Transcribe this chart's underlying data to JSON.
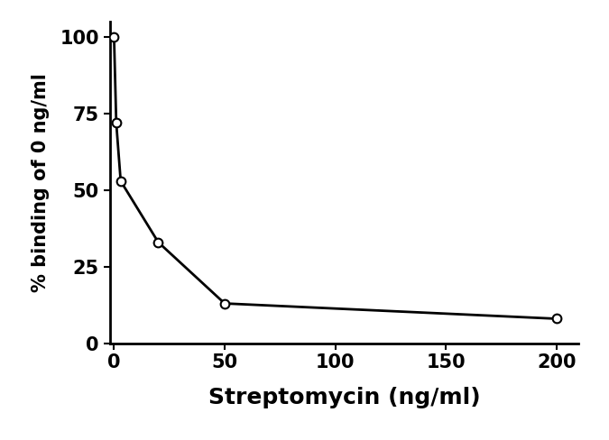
{
  "x": [
    0,
    1,
    3,
    20,
    50,
    200
  ],
  "y": [
    100,
    72,
    53,
    33,
    13,
    8
  ],
  "xlabel": "Streptomycin (ng/ml)",
  "ylabel": "% binding of 0 ng/ml",
  "xlim": [
    -2,
    210
  ],
  "ylim": [
    0,
    105
  ],
  "xticks": [
    0,
    50,
    100,
    150,
    200
  ],
  "yticks": [
    0,
    25,
    50,
    75,
    100
  ],
  "line_color": "#000000",
  "marker_facecolor": "#ffffff",
  "marker_edgecolor": "#000000",
  "marker_size": 7,
  "line_width": 2.0,
  "xlabel_fontsize": 18,
  "ylabel_fontsize": 15,
  "tick_fontsize": 15,
  "background_color": "#ffffff"
}
